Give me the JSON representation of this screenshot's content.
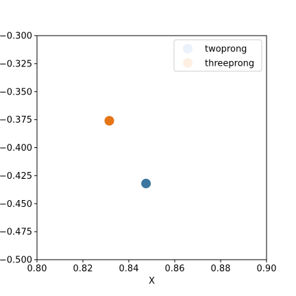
{
  "chart_data": {
    "type": "scatter",
    "title": "",
    "xlabel": "X",
    "ylabel": "",
    "xlim": [
      0.8,
      0.9
    ],
    "ylim": [
      -0.5,
      -0.3
    ],
    "x_ticks": [
      0.8,
      0.82,
      0.84,
      0.86,
      0.88,
      0.9
    ],
    "x_tick_labels": [
      "0.80",
      "0.82",
      "0.84",
      "0.86",
      "0.88",
      "0.90"
    ],
    "y_ticks": [
      -0.3,
      -0.325,
      -0.35,
      -0.375,
      -0.4,
      -0.425,
      -0.45,
      -0.475,
      -0.5
    ],
    "y_tick_labels": [
      "−0.300",
      "−0.325",
      "−0.350",
      "−0.375",
      "−0.400",
      "−0.425",
      "−0.450",
      "−0.475",
      "−0.500"
    ],
    "grid": false,
    "legend_position": "top-right",
    "series": [
      {
        "name": "twoprong",
        "legend_color": "#eaf2fb",
        "points": [
          {
            "x": 0.8315,
            "y": -0.376,
            "color": "#f4f8fd"
          },
          {
            "x": 0.8475,
            "y": -0.432,
            "color": "#3a76a0"
          }
        ]
      },
      {
        "name": "threeprong",
        "legend_color": "#fdf0e3",
        "points": [
          {
            "x": 0.8315,
            "y": -0.376,
            "color": "#e57517"
          }
        ]
      }
    ]
  }
}
